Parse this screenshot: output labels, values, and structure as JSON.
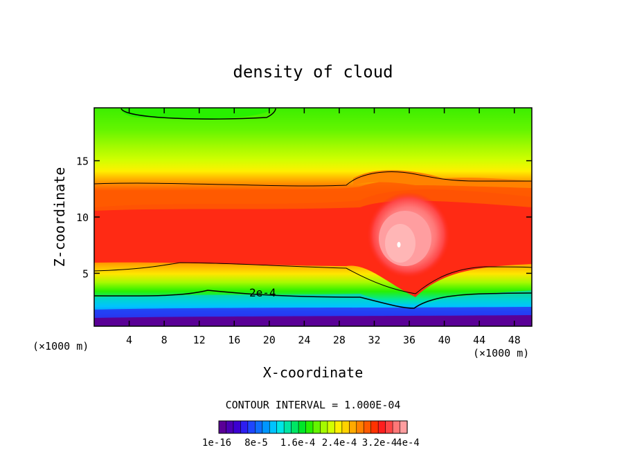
{
  "chart_data": {
    "type": "heatmap",
    "title": "density of cloud",
    "xlabel": "X-coordinate",
    "ylabel": "Z-coordinate",
    "x_unit_left": "(×1000 m)",
    "x_unit_right": "(×1000 m)",
    "xlim": [
      0,
      50
    ],
    "ylim": [
      0.3,
      19.7
    ],
    "x_ticks": [
      4,
      8,
      12,
      16,
      20,
      24,
      28,
      32,
      36,
      40,
      44,
      48
    ],
    "y_ticks": [
      5,
      10,
      15
    ],
    "contour_interval_label": "CONTOUR INTERVAL = 1.000E-04",
    "contour_label": "2e-4",
    "colorbar": {
      "labels": [
        "1e-16",
        "8e-5",
        "1.6e-4",
        "2.4e-4",
        "3.2e-4",
        "4e-4"
      ],
      "colors": [
        "#5a0096",
        "#4b00b4",
        "#3c00d2",
        "#2d1ef0",
        "#1e46ff",
        "#0f6eff",
        "#0096ff",
        "#00c3ff",
        "#00e6e6",
        "#00e6a5",
        "#00e664",
        "#00e628",
        "#28f000",
        "#64f500",
        "#a5fa00",
        "#d2ff00",
        "#fff000",
        "#ffd200",
        "#ffaa00",
        "#ff8200",
        "#ff5a00",
        "#ff3200",
        "#ff1e1e",
        "#ff4646",
        "#ff7878",
        "#ff9ea0"
      ]
    },
    "field_description_layers": [
      {
        "level": "4e-4",
        "x": [
          32.5,
          38.0
        ],
        "z": [
          5.8,
          10.0
        ]
      },
      {
        "level": "3.2e-4",
        "x": [
          31.5,
          39.5
        ],
        "z": [
          4.5,
          11.5
        ]
      },
      {
        "level": "2.4e-4",
        "x": [
          0,
          50
        ],
        "z": [
          5.2,
          13.0
        ]
      },
      {
        "level": "2e-4",
        "x": [
          0,
          50
        ],
        "z": [
          2.8,
          14.5
        ]
      }
    ]
  }
}
